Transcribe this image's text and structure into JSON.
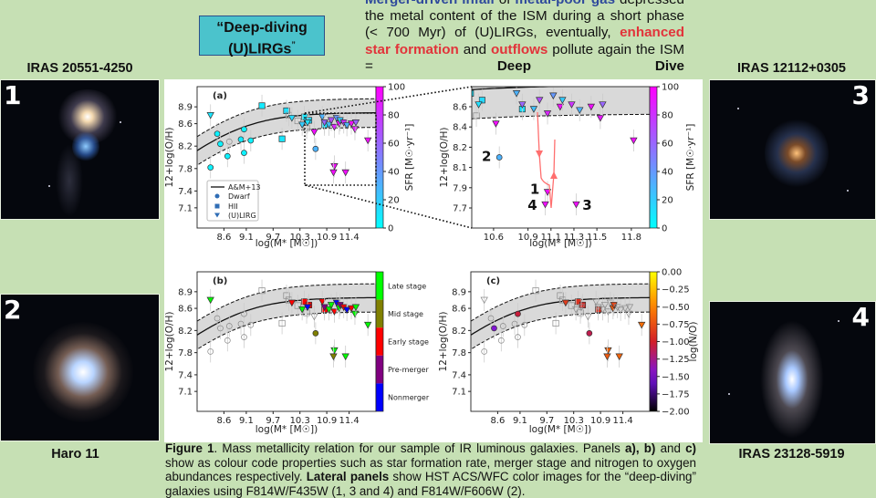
{
  "title_box": {
    "line1": "“Deep-diving",
    "line2": "(U)LIRGs",
    "closing_quote": "”"
  },
  "intro": {
    "s1": "Merger-driven infall",
    "s2": "of",
    "s3": "metal-poor gas",
    "s4": "depressed the metal content of the ISM during a short phase (< 700 Myr) of (U)LIRGs, eventually,",
    "s5": "enhanced star formation",
    "s6": "and",
    "s7": "outflows",
    "s8": "pollute again the ISM =",
    "s9": "Deep Dive"
  },
  "galaxies": [
    {
      "label": "IRAS 20551-4250",
      "number": "1"
    },
    {
      "label": "Haro 11",
      "number": "2"
    },
    {
      "label": "IRAS 12112+0305",
      "number": "3"
    },
    {
      "label": "IRAS 23128-5919",
      "number": "4"
    }
  ],
  "caption": {
    "c1": "Figure 1",
    "c2": ". Mass metallicity relation for our sample of IR luminous galaxies. Panels",
    "c3": "a), b)",
    "c4": "and",
    "c5": "c)",
    "c6": "show as colour code properties such as star formation rate, merger stage and nitrogen to oxygen abundances respectively.",
    "c7": "Lateral panels",
    "c8": "show HST ACS/WFC color images for the “deep-diving” galaxies using F814W/F435W (1, 3 and 4) and F814W/F606W (2)."
  },
  "colors": {
    "background": "#c6e0b4",
    "title_box": "#4bc3cc",
    "highlight_blue": "#2f4a9c",
    "highlight_red": "#e2333a",
    "band": "#d9d9d9"
  },
  "chart_data": {
    "type": "scatter",
    "xlabel": "log(M* [M☉])",
    "ylabel": "12+log(O/H)",
    "model": {
      "name": "A&M+13"
    },
    "legend": {
      "placement": "lower-left",
      "entries": [
        "A&M+13",
        "Dwarf",
        "HII",
        "(U)LIRG"
      ]
    },
    "points": [
      {
        "m": 8.3,
        "oh": 7.82,
        "kind": "Dwarf",
        "sfr": 5,
        "stage": null,
        "no": null
      },
      {
        "m": 8.45,
        "oh": 8.42,
        "kind": "Dwarf",
        "sfr": 5,
        "stage": null,
        "no": null
      },
      {
        "m": 8.52,
        "oh": 8.24,
        "kind": "Dwarf",
        "sfr": 5,
        "stage": null,
        "no": -1.45
      },
      {
        "m": 8.68,
        "oh": 8.02,
        "kind": "Dwarf",
        "sfr": 5,
        "stage": null,
        "no": null
      },
      {
        "m": 8.72,
        "oh": 8.28,
        "kind": "Dwarf",
        "sfr": null,
        "stage": null,
        "no": null
      },
      {
        "m": 8.98,
        "oh": 8.32,
        "kind": "Dwarf",
        "sfr": 8,
        "stage": null,
        "no": null
      },
      {
        "m": 9.05,
        "oh": 8.08,
        "kind": "Dwarf",
        "sfr": 5,
        "stage": null,
        "no": null
      },
      {
        "m": 9.05,
        "oh": 8.5,
        "kind": "Dwarf",
        "sfr": 5,
        "stage": null,
        "no": -1.05
      },
      {
        "m": 9.2,
        "oh": 8.3,
        "kind": "Dwarf",
        "sfr": 5,
        "stage": null,
        "no": null
      },
      {
        "m": 10.65,
        "oh": 8.15,
        "kind": "Dwarf",
        "sfr": 30,
        "stage": "Mid stage",
        "no": -1.1,
        "label": "2"
      },
      {
        "m": 9.45,
        "oh": 8.92,
        "kind": "HII",
        "sfr": 8,
        "stage": null,
        "no": null
      },
      {
        "m": 9.9,
        "oh": 8.33,
        "kind": "HII",
        "sfr": 10,
        "stage": null,
        "no": null
      },
      {
        "m": 10.0,
        "oh": 8.83,
        "kind": "HII",
        "sfr": 12,
        "stage": null,
        "no": null
      },
      {
        "m": 10.05,
        "oh": 8.75,
        "kind": "HII",
        "sfr": null,
        "stage": null,
        "no": null
      },
      {
        "m": 10.25,
        "oh": 8.65,
        "kind": "HII",
        "sfr": null,
        "stage": null,
        "no": null
      },
      {
        "m": 10.45,
        "oh": 8.52,
        "kind": "HII",
        "sfr": null,
        "stage": null,
        "no": null
      },
      {
        "m": 10.4,
        "oh": 8.72,
        "kind": "HII",
        "sfr": 10,
        "stage": "Early stage",
        "no": -0.9
      },
      {
        "m": 10.5,
        "oh": 8.66,
        "kind": "HII",
        "sfr": 15,
        "stage": "Early stage",
        "no": -0.95
      },
      {
        "m": 10.85,
        "oh": 8.58,
        "kind": "HII",
        "sfr": 12,
        "stage": "Early stage",
        "no": -0.9
      },
      {
        "m": 8.3,
        "oh": 8.75,
        "kind": "(U)LIRG",
        "sfr": 10,
        "stage": "Late stage",
        "no": null
      },
      {
        "m": 10.12,
        "oh": 8.7,
        "kind": "(U)LIRG",
        "sfr": 15,
        "stage": "Early stage",
        "no": -0.85
      },
      {
        "m": 10.35,
        "oh": 8.58,
        "kind": "(U)LIRG",
        "sfr": 20,
        "stage": "Late stage",
        "no": null
      },
      {
        "m": 10.62,
        "oh": 8.45,
        "kind": "(U)LIRG",
        "sfr": 95,
        "stage": null,
        "no": null
      },
      {
        "m": 10.47,
        "oh": 8.62,
        "kind": "(U)LIRG",
        "sfr": 12,
        "stage": "Nonmerger",
        "no": null
      },
      {
        "m": 10.8,
        "oh": 8.72,
        "kind": "(U)LIRG",
        "sfr": 30,
        "stage": "Early stage",
        "no": null
      },
      {
        "m": 10.85,
        "oh": 8.62,
        "kind": "(U)LIRG",
        "sfr": 60,
        "stage": "Pre-merger",
        "no": null
      },
      {
        "m": 10.95,
        "oh": 8.58,
        "kind": "(U)LIRG",
        "sfr": 25,
        "stage": "Late stage",
        "no": null
      },
      {
        "m": 11.0,
        "oh": 8.66,
        "kind": "(U)LIRG",
        "sfr": 70,
        "stage": "Late stage",
        "no": null
      },
      {
        "m": 11.07,
        "oh": 8.54,
        "kind": "(U)LIRG",
        "sfr": 85,
        "stage": "Early stage",
        "no": null
      },
      {
        "m": 11.12,
        "oh": 8.7,
        "kind": "(U)LIRG",
        "sfr": 40,
        "stage": "Nonmerger",
        "no": null
      },
      {
        "m": 11.18,
        "oh": 8.6,
        "kind": "(U)LIRG",
        "sfr": 95,
        "stage": "Late stage",
        "no": -0.7
      },
      {
        "m": 11.2,
        "oh": 8.66,
        "kind": "(U)LIRG",
        "sfr": 20,
        "stage": "Pre-merger",
        "no": -0.8
      },
      {
        "m": 11.28,
        "oh": 8.62,
        "kind": "(U)LIRG",
        "sfr": 80,
        "stage": "Early stage",
        "no": null
      },
      {
        "m": 11.35,
        "oh": 8.57,
        "kind": "(U)LIRG",
        "sfr": 30,
        "stage": "Nonmerger",
        "no": null
      },
      {
        "m": 11.45,
        "oh": 8.6,
        "kind": "(U)LIRG",
        "sfr": 95,
        "stage": "Early stage",
        "no": null
      },
      {
        "m": 11.53,
        "oh": 8.5,
        "kind": "(U)LIRG",
        "sfr": 90,
        "stage": "Late stage",
        "no": null
      },
      {
        "m": 11.55,
        "oh": 8.62,
        "kind": "(U)LIRG",
        "sfr": 60,
        "stage": "Late stage",
        "no": null
      },
      {
        "m": 11.82,
        "oh": 8.3,
        "kind": "(U)LIRG",
        "sfr": 95,
        "stage": "Late stage",
        "no": -0.6
      },
      {
        "m": 11.07,
        "oh": 7.84,
        "kind": "(U)LIRG",
        "sfr": 95,
        "stage": "Late stage",
        "no": -0.65,
        "label": "1"
      },
      {
        "m": 11.05,
        "oh": 7.73,
        "kind": "(U)LIRG",
        "sfr": 95,
        "stage": "Mid stage",
        "no": -0.7,
        "label": "4"
      },
      {
        "m": 11.32,
        "oh": 7.73,
        "kind": "(U)LIRG",
        "sfr": 95,
        "stage": "Late stage",
        "no": -0.65,
        "label": "3"
      }
    ],
    "panels": [
      {
        "id": "a",
        "letter": "(a)",
        "color_by": "sfr",
        "xlim": [
          8.0,
          12.0
        ],
        "ylim": [
          6.74,
          9.26
        ],
        "x_ticks": [
          "8.6",
          "9.1",
          "9.7",
          "10.3",
          "10.9",
          "11.4"
        ],
        "y_ticks": [
          "8.9",
          "8.6",
          "8.2",
          "7.8",
          "7.4",
          "7.1"
        ],
        "colorbar": {
          "label": "SFR [M☉·yr⁻¹]",
          "ticks": [
            "100",
            "80",
            "60",
            "40",
            "20",
            "0"
          ],
          "range": [
            0,
            100
          ],
          "colormap": "cool"
        }
      },
      {
        "id": "zoom",
        "letter": "",
        "color_by": "sfr",
        "xlim": [
          10.41,
          11.96
        ],
        "ylim": [
          7.52,
          8.78
        ],
        "x_ticks": [
          "10.6",
          "10.9",
          "11.1",
          "11.3",
          "11.5",
          "11.8"
        ],
        "y_ticks": [
          "8.6",
          "8.4",
          "8.2",
          "8.1",
          "7.9",
          "7.7"
        ],
        "colorbar": {
          "label": "SFR [M☉·yr⁻¹]",
          "ticks": [
            "100",
            "80",
            "60",
            "40",
            "20",
            "0"
          ],
          "range": [
            0,
            100
          ],
          "colormap": "cool"
        }
      },
      {
        "id": "b",
        "letter": "(b)",
        "color_by": "stage",
        "xlim": [
          8.0,
          12.0
        ],
        "ylim": [
          6.74,
          9.26
        ],
        "x_ticks": [
          "8.6",
          "9.1",
          "9.7",
          "10.3",
          "10.9",
          "11.4"
        ],
        "y_ticks": [
          "8.9",
          "8.6",
          "8.2",
          "7.8",
          "7.4",
          "7.1"
        ],
        "colorbar": {
          "label": "",
          "ticks": [
            "Late stage",
            "Mid stage",
            "Early stage",
            "Pre-merger",
            "Nonmerger"
          ],
          "stage_colors": {
            "Late stage": "#00ff00",
            "Mid stage": "#808000",
            "Early stage": "#ff0000",
            "Pre-merger": "#800080",
            "Nonmerger": "#0000ff"
          }
        }
      },
      {
        "id": "c",
        "letter": "(c)",
        "color_by": "no",
        "xlim": [
          8.0,
          12.0
        ],
        "ylim": [
          6.74,
          9.26
        ],
        "x_ticks": [
          "8.6",
          "9.1",
          "9.7",
          "10.3",
          "10.9",
          "11.4"
        ],
        "y_ticks": [
          "8.9",
          "8.6",
          "8.2",
          "7.8",
          "7.4",
          "7.1"
        ],
        "colorbar": {
          "label": "log(N/O)",
          "ticks": [
            "0.00",
            "−0.25",
            "−0.50",
            "−0.75",
            "−1.00",
            "−1.25",
            "−1.50",
            "−1.75",
            "−2.00"
          ],
          "range": [
            -2.0,
            0.0
          ],
          "colormap": "gnuplot"
        }
      }
    ]
  }
}
